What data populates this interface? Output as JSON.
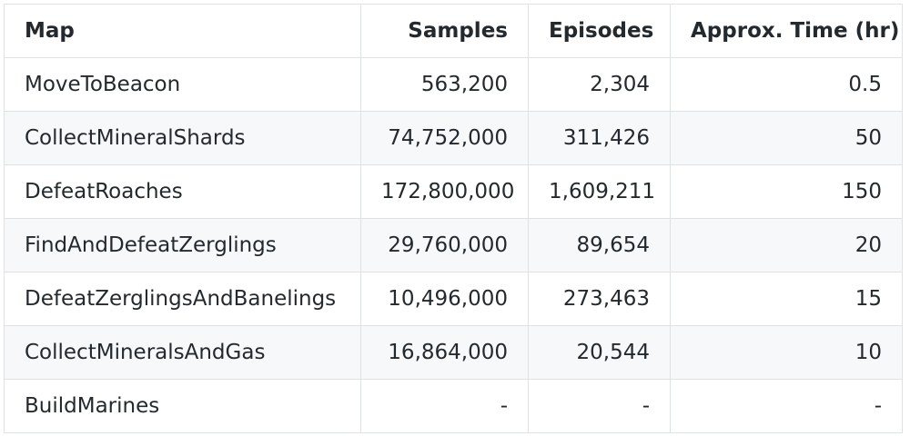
{
  "table": {
    "headers": [
      "Map",
      "Samples",
      "Episodes",
      "Approx. Time (hr)"
    ],
    "rows": [
      [
        "MoveToBeacon",
        "563,200",
        "2,304",
        "0.5"
      ],
      [
        "CollectMineralShards",
        "74,752,000",
        "311,426",
        "50"
      ],
      [
        "DefeatRoaches",
        "172,800,000",
        "1,609,211",
        "150"
      ],
      [
        "FindAndDefeatZerglings",
        "29,760,000",
        "89,654",
        "20"
      ],
      [
        "DefeatZerglingsAndBanelings",
        "10,496,000",
        "273,463",
        "15"
      ],
      [
        "CollectMineralsAndGas",
        "16,864,000",
        "20,544",
        "10"
      ],
      [
        "BuildMarines",
        "-",
        "-",
        "-"
      ]
    ]
  },
  "colors": {
    "border": "#dfe2e5",
    "stripe": "#f6f8fa",
    "text": "#24292e"
  }
}
